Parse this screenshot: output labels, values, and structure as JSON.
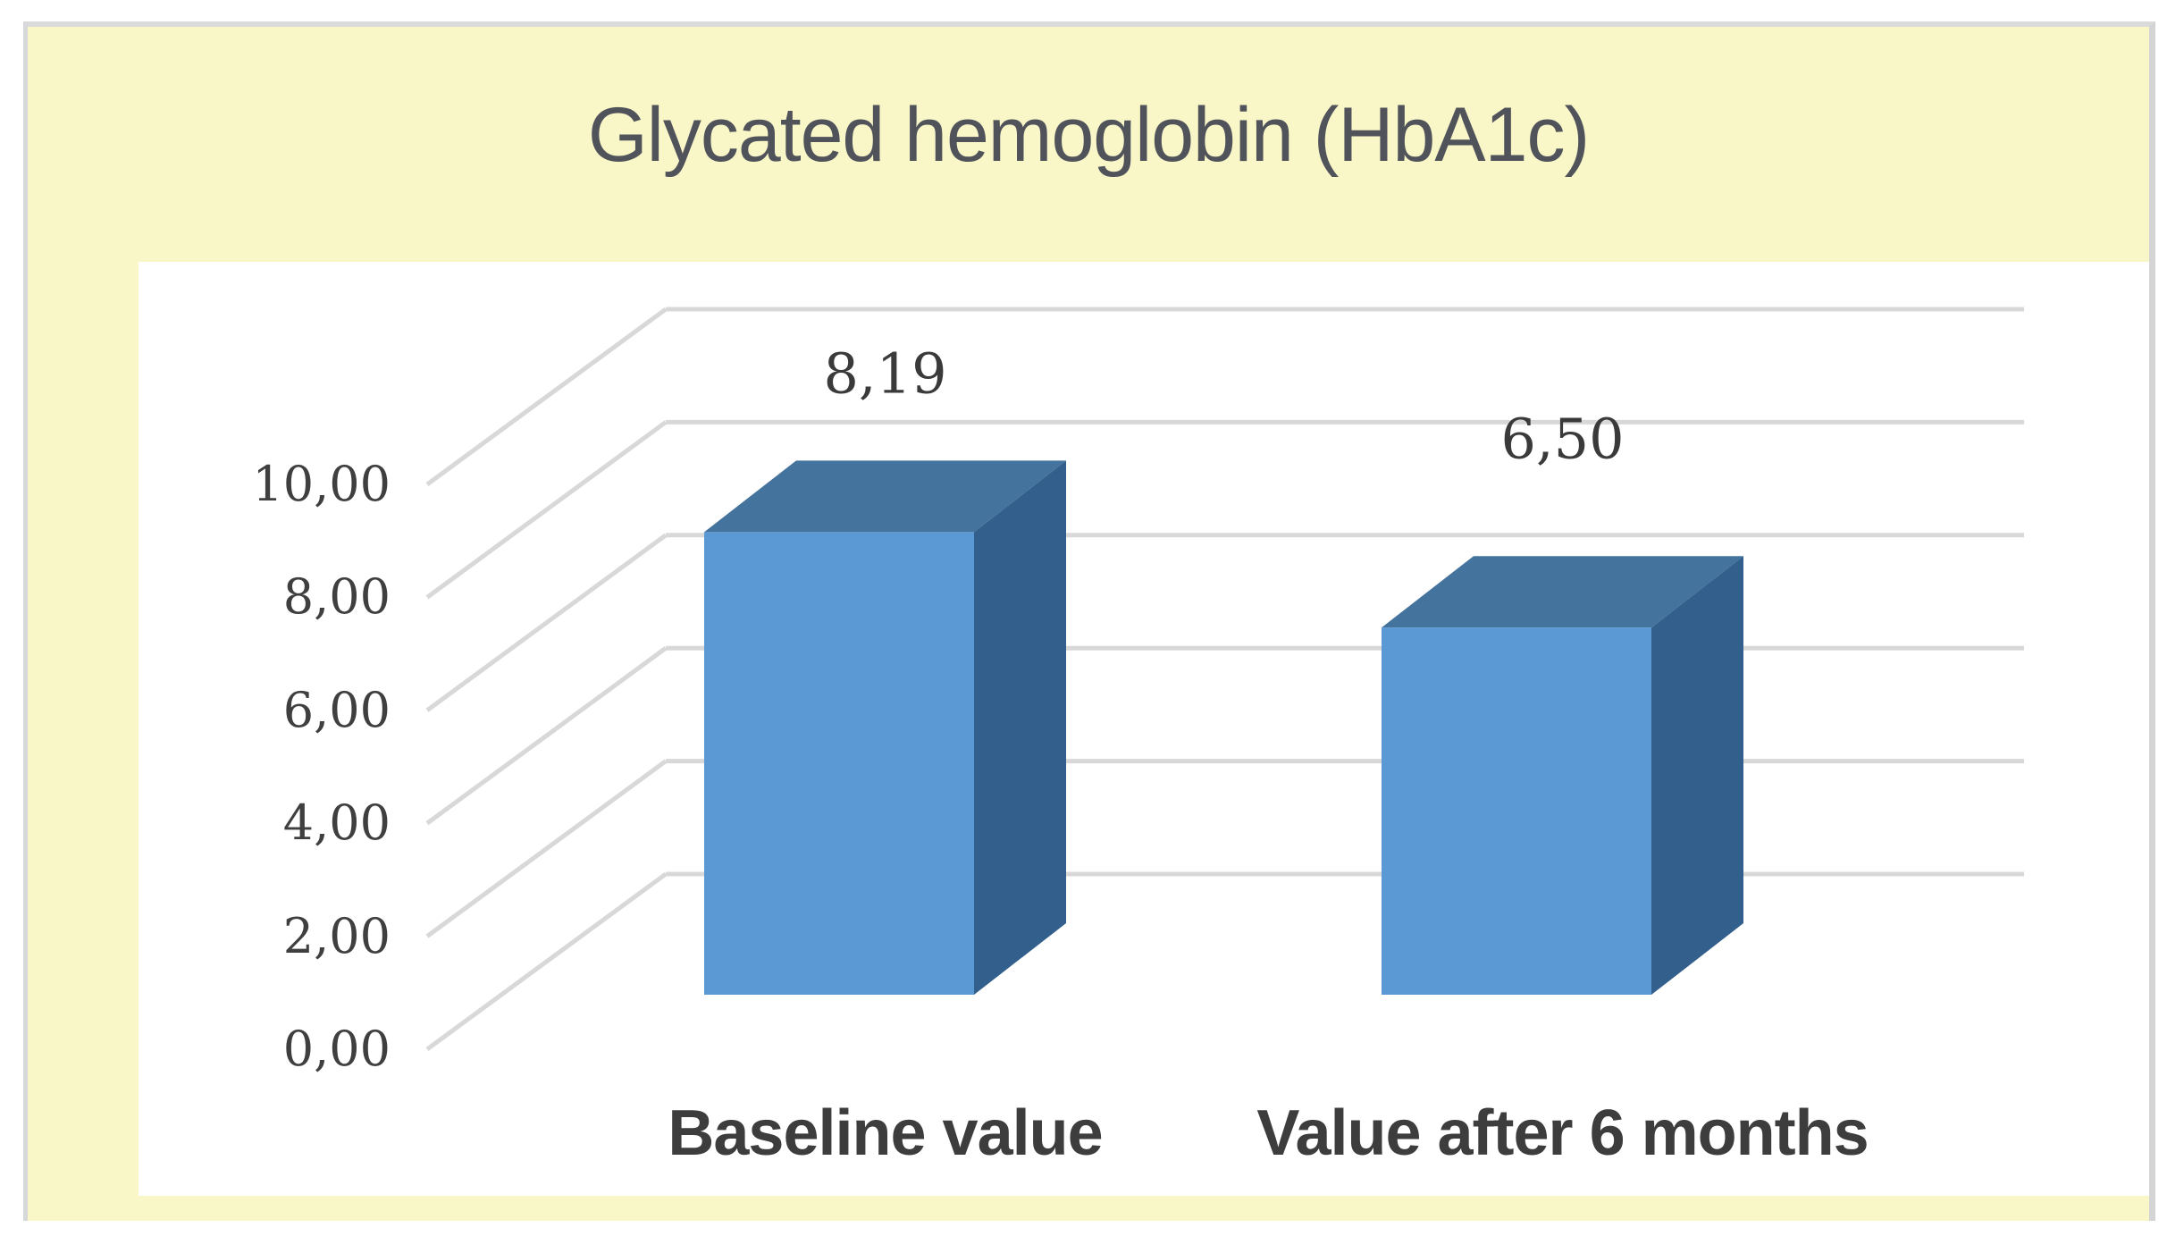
{
  "title": {
    "text": "Glycated hemoglobin (HbA1c)"
  },
  "chart_data": {
    "type": "bar",
    "style": "3d-column",
    "title": "Glycated hemoglobin (HbA1c)",
    "categories": [
      "Baseline value",
      "Value after 6 months"
    ],
    "values": [
      8.19,
      6.5
    ],
    "data_labels": [
      "8,19",
      "6,50"
    ],
    "decimal_separator": ",",
    "series": [
      {
        "name": "HbA1c",
        "values": [
          8.19,
          6.5
        ]
      }
    ],
    "xlabel": "",
    "ylabel": "",
    "ylim": [
      0,
      10
    ],
    "y_tick_step": 2,
    "y_ticks": [
      {
        "label": "10,00",
        "value": 10
      },
      {
        "label": "8,00",
        "value": 8
      },
      {
        "label": "6,00",
        "value": 6
      },
      {
        "label": "4,00",
        "value": 4
      },
      {
        "label": "2,00",
        "value": 2
      },
      {
        "label": "0,00",
        "value": 0
      }
    ],
    "grid": true,
    "legend": false,
    "colors": {
      "bar_front": "#5B99D4",
      "bar_top": "#44739E",
      "bar_side": "#325F8B",
      "gridline": "#D8D8D8",
      "slide_background": "#F9F6C8",
      "plot_background": "#FFFFFF",
      "title_text": "#50535A",
      "tick_text": "#3F3F3F",
      "data_label_text": "#3A3A3A",
      "category_text": "#3D3D3D"
    }
  }
}
